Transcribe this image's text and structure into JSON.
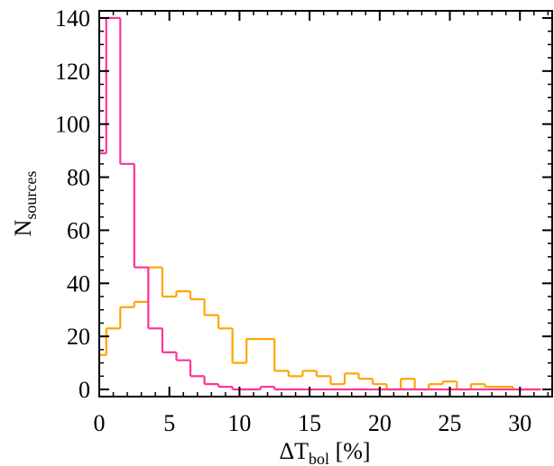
{
  "chart_data": {
    "type": "histogram",
    "bins": [
      -0.5,
      0.5,
      1.5,
      2.5,
      3.5,
      4.5,
      5.5,
      6.5,
      7.5,
      8.5,
      9.5,
      10.5,
      11.5,
      12.5,
      13.5,
      14.5,
      15.5,
      16.5,
      17.5,
      18.5,
      19.5,
      20.5,
      21.5,
      22.5,
      23.5,
      24.5,
      25.5,
      26.5,
      27.5,
      28.5,
      29.5,
      30.5,
      31.5
    ],
    "series": [
      {
        "color": "#ffa500",
        "values": [
          13,
          23,
          31,
          33,
          46,
          35,
          37,
          34,
          28,
          23,
          10,
          19,
          19,
          7,
          5,
          7,
          5,
          2,
          6,
          4,
          2,
          0,
          4,
          0,
          2,
          3,
          0,
          2,
          1,
          1,
          0,
          0
        ]
      },
      {
        "color": "#ff3399",
        "values": [
          89,
          140,
          85,
          46,
          23,
          14,
          11,
          5,
          2,
          1,
          0,
          0,
          1,
          0,
          0,
          0,
          0,
          0,
          0,
          0,
          0,
          0,
          0,
          0,
          0,
          0,
          0,
          0,
          0,
          0,
          0,
          0
        ]
      }
    ],
    "xlabel": "ΔT",
    "xlabel_sub": "bol",
    "xlabel_unit": " [%]",
    "ylabel": "N",
    "ylabel_sub": "sources",
    "xlim": [
      0,
      32.3
    ],
    "ylim": [
      -2.7,
      142.7
    ],
    "xticks": [
      0,
      5,
      10,
      15,
      20,
      25,
      30
    ],
    "yticks": [
      0,
      20,
      40,
      60,
      80,
      100,
      120,
      140
    ]
  }
}
